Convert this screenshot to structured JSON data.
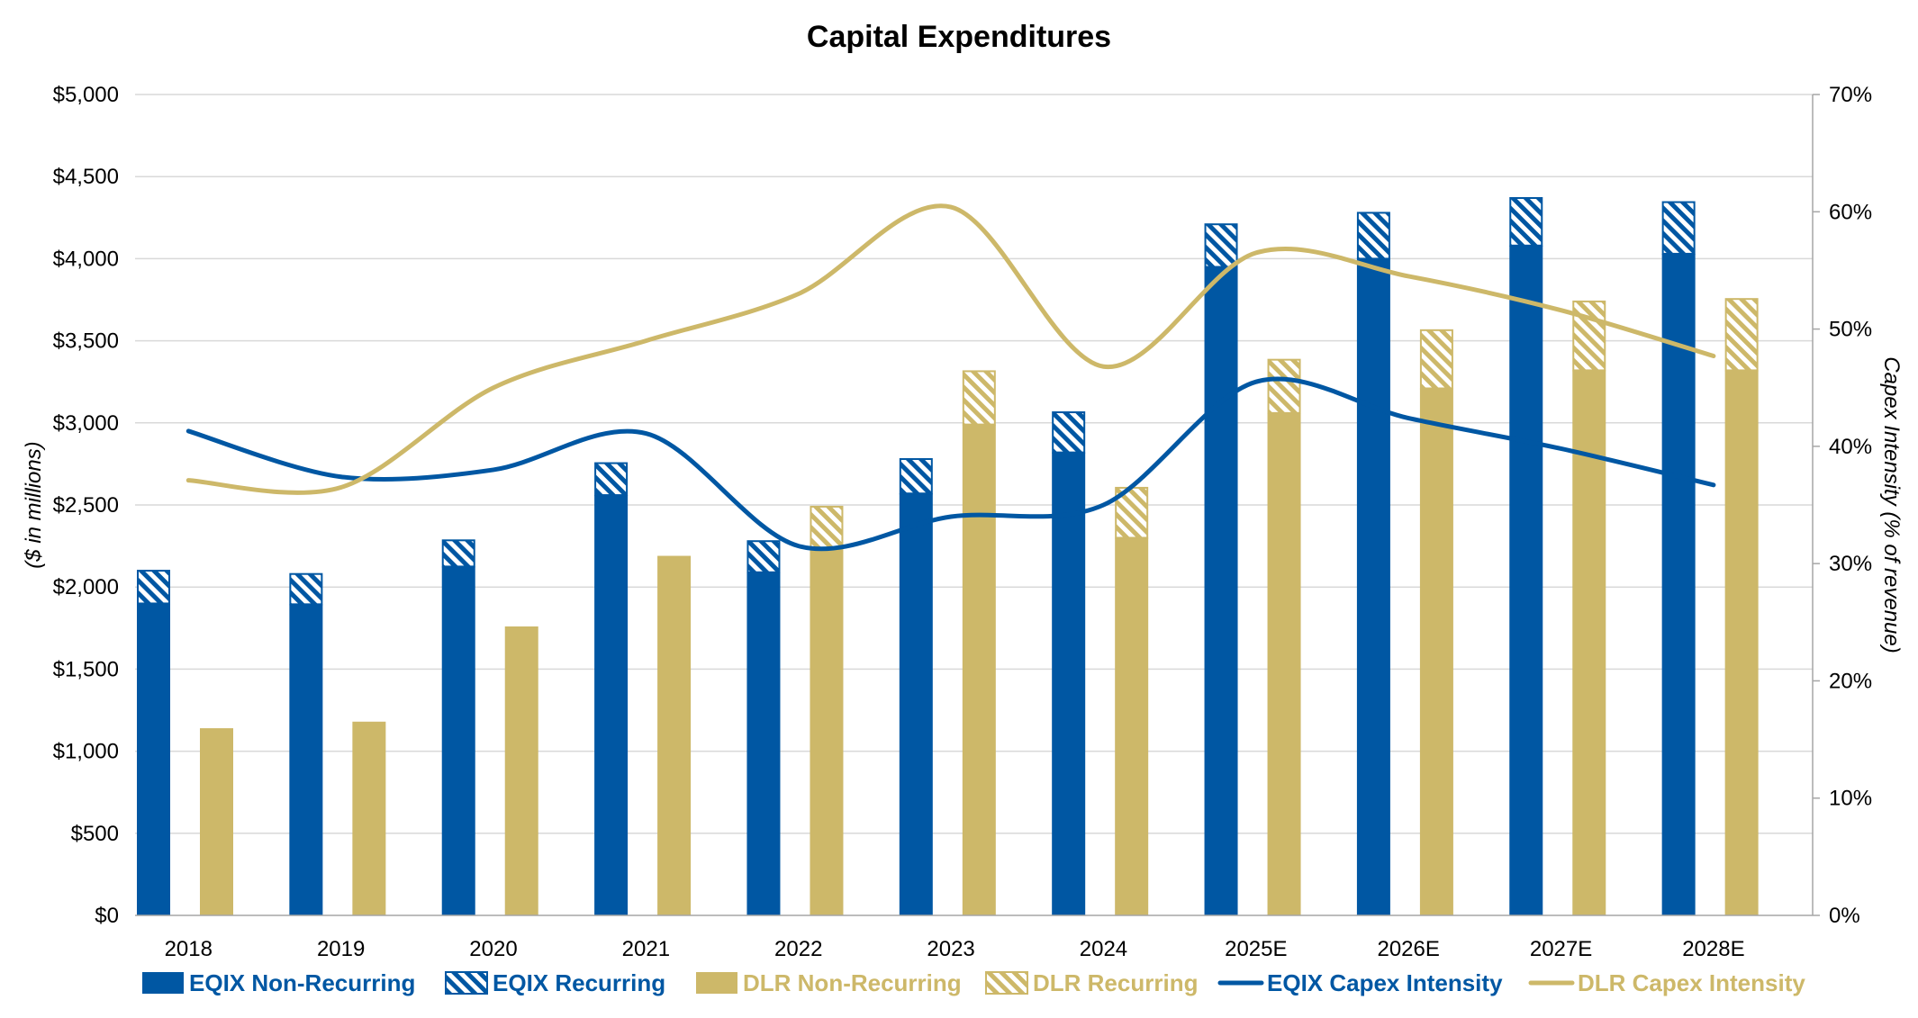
{
  "chart_data": {
    "type": "bar",
    "title": "Capital Expenditures",
    "ylabel": "($ in millions)",
    "y2label": "Capex Intensity (% of revenue)",
    "ylim": [
      0,
      5000
    ],
    "y2lim": [
      0,
      70
    ],
    "yticks": [
      "$0",
      "$500",
      "$1,000",
      "$1,500",
      "$2,000",
      "$2,500",
      "$3,000",
      "$3,500",
      "$4,000",
      "$4,500",
      "$5,000"
    ],
    "y2ticks": [
      "0%",
      "10%",
      "20%",
      "30%",
      "40%",
      "50%",
      "60%",
      "70%"
    ],
    "grid": true,
    "legend_position": "bottom",
    "categories": [
      "2018",
      "2019",
      "2020",
      "2021",
      "2022",
      "2023",
      "2024",
      "2025E",
      "2026E",
      "2027E",
      "2028E"
    ],
    "series": [
      {
        "name": "EQIX Non-Recurring",
        "kind": "bar",
        "group": "EQIX",
        "style": "solid",
        "color": "#0057A3",
        "values": [
          1900,
          1895,
          2125,
          2560,
          2090,
          2570,
          2820,
          3950,
          4000,
          4080,
          4030
        ]
      },
      {
        "name": "EQIX Recurring",
        "kind": "bar",
        "group": "EQIX",
        "style": "hatched",
        "color": "#0057A3",
        "values": [
          205,
          190,
          165,
          200,
          195,
          215,
          250,
          265,
          285,
          295,
          320
        ]
      },
      {
        "name": "DLR Non-Recurring",
        "kind": "bar",
        "group": "DLR",
        "style": "solid",
        "color": "#CDB869",
        "values": [
          1140,
          1180,
          1760,
          2190,
          2240,
          2990,
          2300,
          3060,
          3210,
          3320,
          3320
        ]
      },
      {
        "name": "DLR Recurring",
        "kind": "bar",
        "group": "DLR",
        "style": "hatched",
        "color": "#CDB869",
        "values": [
          0,
          0,
          0,
          0,
          255,
          330,
          310,
          330,
          360,
          425,
          440
        ]
      },
      {
        "name": "EQIX Capex Intensity",
        "kind": "line",
        "axis": "right",
        "color": "#0057A3",
        "values": [
          41.3,
          37.4,
          38.0,
          41.1,
          31.5,
          34.0,
          35.0,
          45.5,
          42.4,
          39.8,
          36.7
        ]
      },
      {
        "name": "DLR Capex Intensity",
        "kind": "line",
        "axis": "right",
        "color": "#CDB869",
        "values": [
          37.1,
          36.5,
          45.0,
          49.0,
          53.0,
          60.4,
          46.8,
          56.5,
          54.5,
          51.6,
          47.7
        ]
      }
    ]
  }
}
